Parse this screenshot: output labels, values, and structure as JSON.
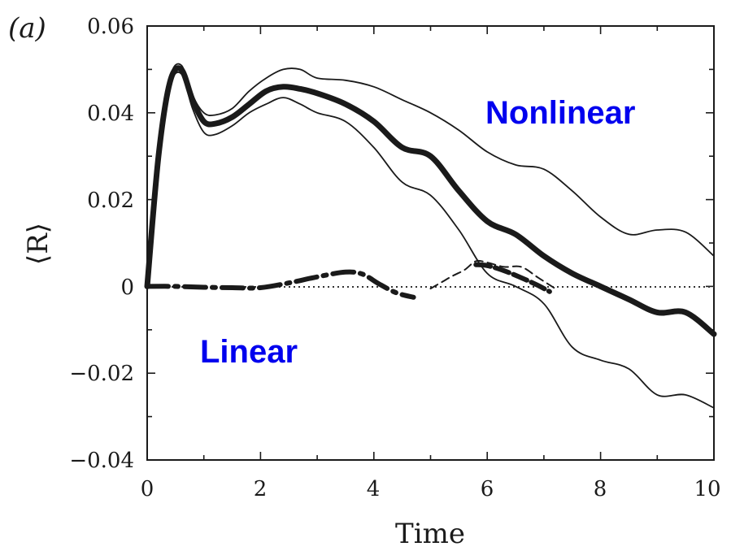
{
  "chart_data": {
    "type": "line",
    "panel_label": "(a)",
    "title": "",
    "xlabel": "Time",
    "ylabel": "⟨R⟩",
    "xlim": [
      0,
      10
    ],
    "ylim": [
      -0.04,
      0.06
    ],
    "x_ticks": [
      "0",
      "2",
      "4",
      "6",
      "8",
      "10"
    ],
    "y_ticks": [
      "0.06",
      "0.04",
      "0.02",
      "0",
      "−0.02",
      "−0.04"
    ],
    "grid": false,
    "annotations": [
      "Nonlinear",
      "Linear"
    ],
    "zero_line": "dotted",
    "series": [
      {
        "style": "thick solid",
        "x": [
          0,
          0.2,
          0.4,
          0.6,
          0.8,
          1.0,
          1.2,
          1.5,
          1.8,
          2.1,
          2.4,
          2.7,
          3.0,
          3.5,
          4.0,
          4.5,
          5.0,
          5.5,
          6.0,
          6.5,
          7.0,
          7.5,
          8.0,
          8.5,
          9.0,
          9.5,
          10.0
        ],
        "y": [
          0,
          0.03,
          0.047,
          0.05,
          0.043,
          0.038,
          0.0375,
          0.039,
          0.042,
          0.045,
          0.046,
          0.0455,
          0.0445,
          0.042,
          0.038,
          0.032,
          0.03,
          0.022,
          0.015,
          0.012,
          0.007,
          0.003,
          0.0,
          -0.003,
          -0.006,
          -0.006,
          -0.011
        ]
      },
      {
        "style": "thin solid upper",
        "x": [
          0,
          0.2,
          0.4,
          0.6,
          0.8,
          1.0,
          1.2,
          1.5,
          1.8,
          2.1,
          2.4,
          2.7,
          3.0,
          3.5,
          4.0,
          4.5,
          5.0,
          5.5,
          6.0,
          6.5,
          7.0,
          7.5,
          8.0,
          8.5,
          9.0,
          9.5,
          10.0
        ],
        "y": [
          0,
          0.031,
          0.048,
          0.051,
          0.044,
          0.04,
          0.0395,
          0.041,
          0.045,
          0.048,
          0.05,
          0.05,
          0.048,
          0.0475,
          0.046,
          0.043,
          0.04,
          0.036,
          0.031,
          0.028,
          0.027,
          0.022,
          0.016,
          0.012,
          0.013,
          0.0125,
          0.007
        ]
      },
      {
        "style": "thin solid lower",
        "x": [
          0,
          0.2,
          0.4,
          0.6,
          0.8,
          1.0,
          1.2,
          1.5,
          1.8,
          2.1,
          2.4,
          2.7,
          3.0,
          3.5,
          4.0,
          4.5,
          5.0,
          5.5,
          6.0,
          6.5,
          7.0,
          7.5,
          8.0,
          8.5,
          9.0,
          9.5,
          10.0
        ],
        "y": [
          0,
          0.029,
          0.046,
          0.049,
          0.041,
          0.0355,
          0.035,
          0.037,
          0.04,
          0.042,
          0.0435,
          0.042,
          0.04,
          0.038,
          0.032,
          0.024,
          0.021,
          0.013,
          0.003,
          -0.0,
          -0.004,
          -0.014,
          -0.017,
          -0.019,
          -0.025,
          -0.025,
          -0.028
        ]
      },
      {
        "style": "thick dash-dot",
        "x": [
          0,
          0.5,
          1.0,
          1.5,
          2.0,
          2.5,
          3.0,
          3.5,
          3.8,
          4.1,
          4.4,
          4.7
        ],
        "y": [
          0,
          0.0,
          -0.0002,
          -0.0003,
          -0.0003,
          0.0008,
          0.0022,
          0.0033,
          0.0028,
          0.0005,
          -0.0015,
          -0.0025
        ]
      },
      {
        "style": "thin dashed upper",
        "x": [
          5.0,
          5.2,
          5.4,
          5.6,
          5.8,
          6.0,
          6.3,
          6.6,
          6.9,
          7.2
        ],
        "y": [
          -0.0005,
          0.001,
          0.0025,
          0.0038,
          0.0058,
          0.0055,
          0.0045,
          0.0045,
          0.002,
          -0.0005
        ]
      },
      {
        "style": "thick dashed",
        "x": [
          5.8,
          6.0,
          6.3,
          6.6,
          6.9,
          7.1
        ],
        "y": [
          0.005,
          0.0048,
          0.0036,
          0.002,
          0.0002,
          -0.0012
        ]
      }
    ]
  }
}
